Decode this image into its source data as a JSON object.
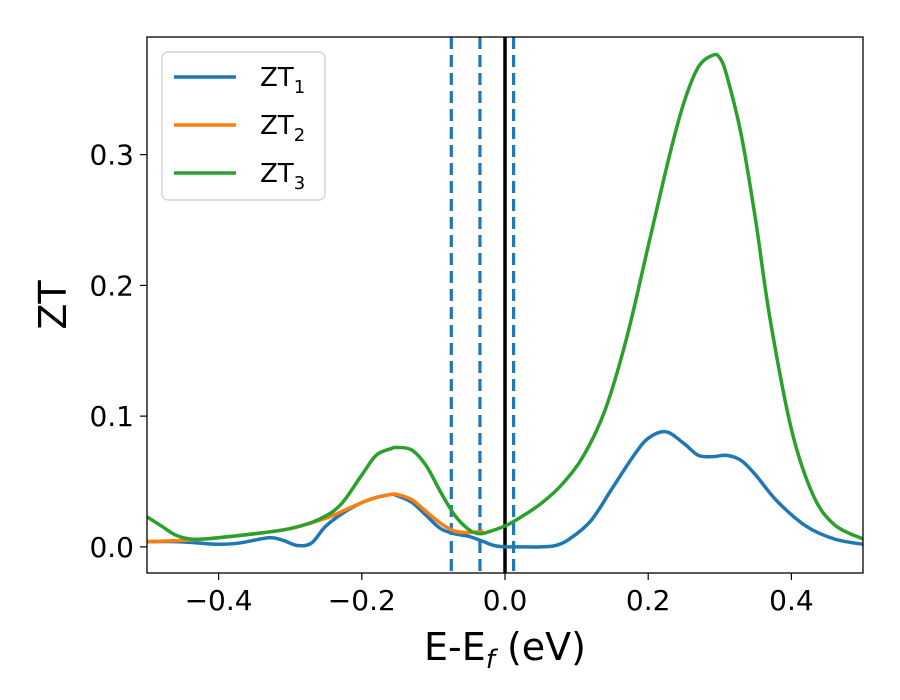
{
  "chart_data": {
    "type": "line",
    "xlabel": "E-E",
    "xlabel_sub": "f",
    "xlabel_unit": " (eV)",
    "ylabel": "ZT",
    "xlim": [
      -0.5,
      0.5
    ],
    "ylim": [
      -0.02,
      0.39
    ],
    "xticks": [
      -0.4,
      -0.2,
      0.0,
      0.2,
      0.4
    ],
    "xtick_labels": [
      "−0.4",
      "−0.2",
      "0.0",
      "0.2",
      "0.4"
    ],
    "yticks": [
      0.0,
      0.1,
      0.2,
      0.3
    ],
    "ytick_labels": [
      "0.0",
      "0.1",
      "0.2",
      "0.3"
    ],
    "grid": false,
    "legend_position": "upper-left",
    "vlines": [
      {
        "x": -0.075,
        "style": "dashed",
        "color": "#1f77b4"
      },
      {
        "x": -0.035,
        "style": "dashed",
        "color": "#1f77b4"
      },
      {
        "x": 0.012,
        "style": "dashed",
        "color": "#1f77b4"
      },
      {
        "x": 0.0,
        "style": "solid",
        "color": "#000000"
      }
    ],
    "series": [
      {
        "name": "ZT",
        "sub": "1",
        "color": "#1f77b4",
        "x": [
          -0.5,
          -0.46,
          -0.43,
          -0.4,
          -0.37,
          -0.33,
          -0.31,
          -0.29,
          -0.27,
          -0.25,
          -0.22,
          -0.19,
          -0.16,
          -0.15,
          -0.13,
          -0.11,
          -0.09,
          -0.07,
          -0.05,
          -0.03,
          -0.015,
          0.0,
          0.02,
          0.05,
          0.07,
          0.09,
          0.12,
          0.15,
          0.18,
          0.2,
          0.225,
          0.25,
          0.27,
          0.29,
          0.31,
          0.33,
          0.35,
          0.38,
          0.42,
          0.46,
          0.5
        ],
        "y": [
          0.004,
          0.004,
          0.003,
          0.002,
          0.003,
          0.007,
          0.005,
          0.001,
          0.003,
          0.016,
          0.028,
          0.036,
          0.04,
          0.039,
          0.034,
          0.024,
          0.014,
          0.01,
          0.008,
          0.004,
          0.001,
          0.0,
          0.0,
          0.0,
          0.001,
          0.006,
          0.02,
          0.045,
          0.07,
          0.083,
          0.088,
          0.079,
          0.07,
          0.069,
          0.07,
          0.066,
          0.055,
          0.035,
          0.016,
          0.006,
          0.002
        ]
      },
      {
        "name": "ZT",
        "sub": "2",
        "color": "#ff7f0e",
        "x": [
          -0.5,
          -0.45,
          -0.4,
          -0.35,
          -0.3,
          -0.25,
          -0.22,
          -0.19,
          -0.16,
          -0.15,
          -0.13,
          -0.11,
          -0.09,
          -0.07,
          -0.05,
          -0.03
        ],
        "y": [
          0.004,
          0.005,
          0.007,
          0.01,
          0.014,
          0.022,
          0.029,
          0.036,
          0.04,
          0.04,
          0.036,
          0.027,
          0.018,
          0.012,
          0.011,
          0.012
        ]
      },
      {
        "name": "ZT",
        "sub": "3",
        "color": "#2ca02c",
        "x": [
          -0.5,
          -0.48,
          -0.46,
          -0.44,
          -0.42,
          -0.4,
          -0.35,
          -0.3,
          -0.26,
          -0.23,
          -0.2,
          -0.18,
          -0.16,
          -0.15,
          -0.13,
          -0.11,
          -0.09,
          -0.07,
          -0.05,
          -0.035,
          -0.02,
          0.0,
          0.02,
          0.05,
          0.08,
          0.11,
          0.14,
          0.17,
          0.2,
          0.23,
          0.25,
          0.27,
          0.29,
          0.3,
          0.31,
          0.33,
          0.35,
          0.37,
          0.4,
          0.43,
          0.46,
          0.5
        ],
        "y": [
          0.023,
          0.016,
          0.009,
          0.006,
          0.006,
          0.007,
          0.01,
          0.014,
          0.021,
          0.032,
          0.055,
          0.07,
          0.075,
          0.076,
          0.074,
          0.062,
          0.042,
          0.024,
          0.013,
          0.01,
          0.012,
          0.016,
          0.022,
          0.033,
          0.048,
          0.07,
          0.105,
          0.16,
          0.23,
          0.3,
          0.34,
          0.367,
          0.376,
          0.374,
          0.36,
          0.315,
          0.25,
          0.175,
          0.09,
          0.04,
          0.017,
          0.006
        ]
      }
    ]
  }
}
